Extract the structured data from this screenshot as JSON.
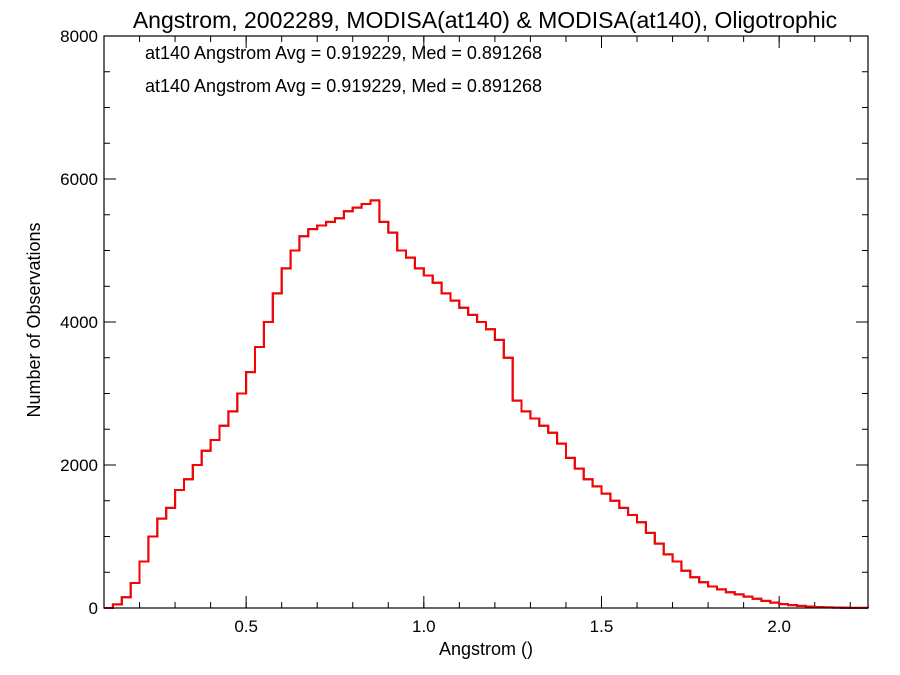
{
  "chart_data": {
    "type": "line",
    "title": "Angstrom, 2002289, MODISA(at140) & MODISA(at140), Oligotrophic",
    "xlabel": "Angstrom ()",
    "ylabel": "Number of Observations",
    "xlim": [
      0.1,
      2.25
    ],
    "ylim": [
      0,
      8000
    ],
    "x_ticks": [
      {
        "value": 0.5,
        "label": "0.5"
      },
      {
        "value": 1.0,
        "label": "1.0"
      },
      {
        "value": 1.5,
        "label": "1.5"
      },
      {
        "value": 2.0,
        "label": "2.0"
      }
    ],
    "y_ticks": [
      {
        "value": 0,
        "label": "0"
      },
      {
        "value": 2000,
        "label": "2000"
      },
      {
        "value": 4000,
        "label": "4000"
      },
      {
        "value": 6000,
        "label": "6000"
      },
      {
        "value": 8000,
        "label": "8000"
      }
    ],
    "grid": false,
    "annotations": [
      {
        "text": "at140 Angstrom Avg = 0.919229, Med = 0.891268",
        "color": "#000000"
      },
      {
        "text": "at140 Angstrom Avg = 0.919229, Med = 0.891268",
        "color": "#ff0000"
      }
    ],
    "series": [
      {
        "color": "#000000",
        "style": "histogram-step",
        "x": [
          0.1,
          0.125,
          0.15,
          0.175,
          0.2,
          0.225,
          0.25,
          0.275,
          0.3,
          0.325,
          0.35,
          0.375,
          0.4,
          0.425,
          0.45,
          0.475,
          0.5,
          0.525,
          0.55,
          0.575,
          0.6,
          0.625,
          0.65,
          0.675,
          0.7,
          0.725,
          0.75,
          0.775,
          0.8,
          0.825,
          0.85,
          0.875,
          0.9,
          0.925,
          0.95,
          0.975,
          1.0,
          1.025,
          1.05,
          1.075,
          1.1,
          1.125,
          1.15,
          1.175,
          1.2,
          1.225,
          1.25,
          1.275,
          1.3,
          1.325,
          1.35,
          1.375,
          1.4,
          1.425,
          1.45,
          1.475,
          1.5,
          1.525,
          1.55,
          1.575,
          1.6,
          1.625,
          1.65,
          1.675,
          1.7,
          1.725,
          1.75,
          1.775,
          1.8,
          1.825,
          1.85,
          1.875,
          1.9,
          1.925,
          1.95,
          1.975,
          2.0,
          2.025,
          2.05,
          2.075,
          2.1,
          2.125,
          2.15,
          2.175,
          2.2,
          2.225,
          2.25
        ],
        "y": [
          0,
          50,
          150,
          350,
          650,
          1000,
          1250,
          1400,
          1650,
          1800,
          2000,
          2200,
          2350,
          2550,
          2750,
          3000,
          3300,
          3650,
          4000,
          4400,
          4750,
          5000,
          5200,
          5300,
          5350,
          5400,
          5450,
          5550,
          5600,
          5650,
          5700,
          5400,
          5250,
          5000,
          4900,
          4750,
          4650,
          4550,
          4400,
          4300,
          4200,
          4100,
          4000,
          3900,
          3750,
          3500,
          2900,
          2750,
          2650,
          2550,
          2450,
          2300,
          2100,
          1950,
          1800,
          1700,
          1600,
          1500,
          1400,
          1300,
          1200,
          1050,
          900,
          750,
          650,
          520,
          430,
          360,
          300,
          260,
          220,
          190,
          160,
          130,
          100,
          75,
          55,
          40,
          30,
          20,
          12,
          8,
          5,
          3,
          2,
          1,
          0
        ]
      },
      {
        "color": "#ff0000",
        "style": "histogram-step",
        "x": [
          0.1,
          0.125,
          0.15,
          0.175,
          0.2,
          0.225,
          0.25,
          0.275,
          0.3,
          0.325,
          0.35,
          0.375,
          0.4,
          0.425,
          0.45,
          0.475,
          0.5,
          0.525,
          0.55,
          0.575,
          0.6,
          0.625,
          0.65,
          0.675,
          0.7,
          0.725,
          0.75,
          0.775,
          0.8,
          0.825,
          0.85,
          0.875,
          0.9,
          0.925,
          0.95,
          0.975,
          1.0,
          1.025,
          1.05,
          1.075,
          1.1,
          1.125,
          1.15,
          1.175,
          1.2,
          1.225,
          1.25,
          1.275,
          1.3,
          1.325,
          1.35,
          1.375,
          1.4,
          1.425,
          1.45,
          1.475,
          1.5,
          1.525,
          1.55,
          1.575,
          1.6,
          1.625,
          1.65,
          1.675,
          1.7,
          1.725,
          1.75,
          1.775,
          1.8,
          1.825,
          1.85,
          1.875,
          1.9,
          1.925,
          1.95,
          1.975,
          2.0,
          2.025,
          2.05,
          2.075,
          2.1,
          2.125,
          2.15,
          2.175,
          2.2,
          2.225,
          2.25
        ],
        "y": [
          0,
          50,
          150,
          350,
          650,
          1000,
          1250,
          1400,
          1650,
          1800,
          2000,
          2200,
          2350,
          2550,
          2750,
          3000,
          3300,
          3650,
          4000,
          4400,
          4750,
          5000,
          5200,
          5300,
          5350,
          5400,
          5450,
          5550,
          5600,
          5650,
          5700,
          5400,
          5250,
          5000,
          4900,
          4750,
          4650,
          4550,
          4400,
          4300,
          4200,
          4100,
          4000,
          3900,
          3750,
          3500,
          2900,
          2750,
          2650,
          2550,
          2450,
          2300,
          2100,
          1950,
          1800,
          1700,
          1600,
          1500,
          1400,
          1300,
          1200,
          1050,
          900,
          750,
          650,
          520,
          430,
          360,
          300,
          260,
          220,
          190,
          160,
          130,
          100,
          75,
          55,
          40,
          30,
          20,
          12,
          8,
          5,
          3,
          2,
          1,
          0
        ]
      }
    ]
  }
}
